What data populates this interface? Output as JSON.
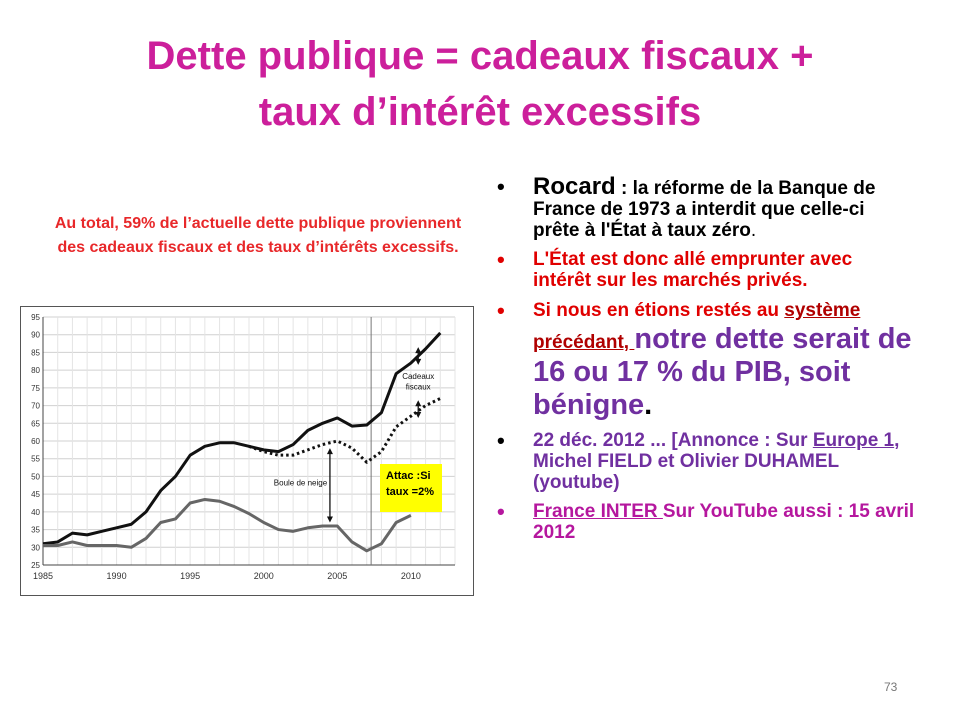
{
  "slide": {
    "title_line1": "Dette publique = cadeaux fiscaux +",
    "title_line2": "taux d’intérêt excessifs",
    "page_number": "73"
  },
  "caption": {
    "line1": "Au total, 59% de l’actuelle dette publique proviennent",
    "line2": "des cadeaux fiscaux et des taux d’intérêts excessifs."
  },
  "note": {
    "line1": "Attac :Si",
    "line2": "taux =2%"
  },
  "bullets": {
    "symbol": "•",
    "b1_name": "Rocard",
    "b1_text": " : la réforme de la Banque de France de 1973 a interdit que celle-ci prête à l'État à taux zéro",
    "b1_end": ".",
    "b2_text": "L'État est donc allé emprunter avec intérêt sur les marchés privés.",
    "b3_start": " Si nous en étions restés au ",
    "b3_underlined": "système précédant, ",
    "b3_big": "notre dette serait de 16 ou 17 % du PIB, soit bénigne",
    "b3_end": ".",
    "b4_start": " 22  déc. 2012 ... [Annonce : Sur ",
    "b4_underlined": "Europe 1",
    "b4_end": ", Michel FIELD et Olivier DUHAMEL (youtube)",
    "b5_underlined": "France INTER ",
    "b5_end": "Sur YouTube aussi : 15 avril 2012"
  },
  "chart_data": {
    "type": "line",
    "x_ticks": [
      1985,
      1990,
      1995,
      2000,
      2005,
      2010
    ],
    "y_ticks": [
      25,
      30,
      35,
      40,
      45,
      50,
      55,
      60,
      65,
      70,
      75,
      80,
      85,
      90,
      95
    ],
    "xlim": [
      1985,
      2013
    ],
    "ylim": [
      25,
      95
    ],
    "grid": true,
    "vertical_marker_x": 2007.3,
    "annotations": [
      {
        "text": "Cadeaux",
        "x": 2010.5,
        "y": 77.5
      },
      {
        "text": "fiscaux",
        "x": 2010.5,
        "y": 74.5
      },
      {
        "text": "Boule de neige",
        "x": 2002.5,
        "y": 47.5
      }
    ],
    "colors": {
      "line": "#111111",
      "lower": "#666666"
    },
    "series": [
      {
        "style": "solid",
        "x": [
          1985,
          1986,
          1987,
          1988,
          1989,
          1990,
          1991,
          1992,
          1993,
          1994,
          1995,
          1996,
          1997,
          1998,
          1999,
          2000,
          2001,
          2002,
          2003,
          2004,
          2005,
          2006,
          2007,
          2008,
          2009,
          2010,
          2011,
          2012
        ],
        "y": [
          31,
          31.5,
          34,
          33.5,
          34.5,
          35.5,
          36.5,
          40,
          46,
          50,
          56,
          58.5,
          59.5,
          59.5,
          58.5,
          57.5,
          57,
          59,
          63,
          65,
          66.5,
          64.2,
          64.5,
          68,
          79,
          82,
          86,
          90.5
        ]
      },
      {
        "style": "dotted",
        "x": [
          1999,
          2000,
          2001,
          2002,
          2003,
          2004,
          2005,
          2006,
          2007,
          2008,
          2009,
          2010,
          2011,
          2012
        ],
        "y": [
          58.5,
          57,
          56,
          56,
          57.5,
          59,
          60,
          58,
          54,
          57,
          64,
          67,
          70,
          72
        ]
      },
      {
        "style": "solid",
        "x": [
          1985,
          1986,
          1987,
          1988,
          1989,
          1990,
          1991,
          1992,
          1993,
          1994,
          1995,
          1996,
          1997,
          1998,
          1999,
          2000,
          2001,
          2002,
          2003,
          2004,
          2005,
          2006,
          2007,
          2008,
          2009,
          2010
        ],
        "y": [
          30.5,
          30.5,
          31.5,
          30.5,
          30.5,
          30.5,
          30,
          32.5,
          37,
          38,
          42.5,
          43.5,
          43,
          41.5,
          39.5,
          37,
          35,
          34.5,
          35.5,
          36,
          36,
          31.5,
          29,
          31,
          37,
          39
        ]
      }
    ]
  }
}
